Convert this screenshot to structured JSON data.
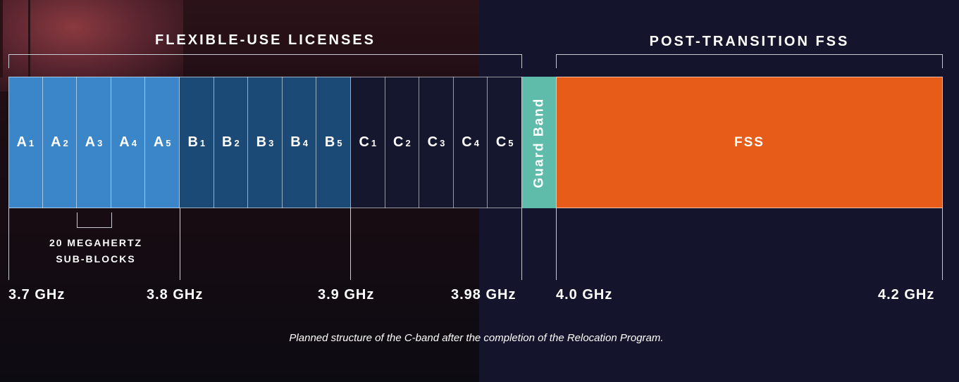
{
  "headings": {
    "flexible": "FLEXIBLE-USE LICENSES",
    "post_transition": "POST-TRANSITION FSS"
  },
  "blocks": {
    "a": [
      {
        "letter": "A",
        "num": "1"
      },
      {
        "letter": "A",
        "num": "2"
      },
      {
        "letter": "A",
        "num": "3"
      },
      {
        "letter": "A",
        "num": "4"
      },
      {
        "letter": "A",
        "num": "5"
      }
    ],
    "b": [
      {
        "letter": "B",
        "num": "1"
      },
      {
        "letter": "B",
        "num": "2"
      },
      {
        "letter": "B",
        "num": "3"
      },
      {
        "letter": "B",
        "num": "4"
      },
      {
        "letter": "B",
        "num": "5"
      }
    ],
    "c": [
      {
        "letter": "C",
        "num": "1"
      },
      {
        "letter": "C",
        "num": "2"
      },
      {
        "letter": "C",
        "num": "3"
      },
      {
        "letter": "C",
        "num": "4"
      },
      {
        "letter": "C",
        "num": "5"
      }
    ]
  },
  "guard_band": "Guard Band",
  "fss": "FSS",
  "sub_block_note": {
    "line1": "20 MEGAHERTZ",
    "line2": "SUB-BLOCKS"
  },
  "frequencies": {
    "f1": "3.7 GHz",
    "f2": "3.8 GHz",
    "f3": "3.9 GHz",
    "f4": "3.98 GHz",
    "f5": "4.0 GHz",
    "f6": "4.2 GHz"
  },
  "caption": "Planned structure of the C-band after the completion of the Relocation Program.",
  "colors": {
    "a_blocks": "#3a86c8",
    "b_blocks": "#1c4a77",
    "c_blocks": "#15172e",
    "guard_band": "#5fbcaa",
    "fss": "#e85c1a",
    "background": "#14152c"
  }
}
